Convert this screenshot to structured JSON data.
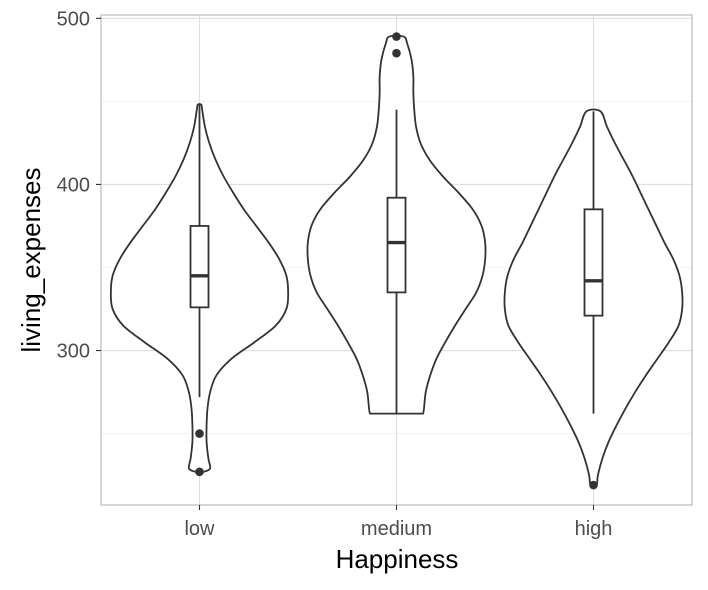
{
  "chart_data": {
    "type": "violin",
    "title": "",
    "xlabel": "Happiness",
    "ylabel": "living_expenses",
    "categories": [
      "low",
      "medium",
      "high"
    ],
    "ylim": [
      207,
      502
    ],
    "yticks": [
      300,
      400,
      500
    ],
    "grid": true,
    "colors": {
      "line": "#333333",
      "grid_major": "#dedede",
      "grid_minor": "#efefef",
      "panel_border": "#b3b3b3",
      "tick_text": "#4d4d4d"
    },
    "violins": [
      {
        "category": "low",
        "profile": [
          [
            227,
            0.05
          ],
          [
            229,
            0.12
          ],
          [
            235,
            0.1
          ],
          [
            245,
            0.08
          ],
          [
            255,
            0.08
          ],
          [
            265,
            0.09
          ],
          [
            275,
            0.12
          ],
          [
            285,
            0.19
          ],
          [
            295,
            0.36
          ],
          [
            305,
            0.62
          ],
          [
            315,
            0.86
          ],
          [
            325,
            0.98
          ],
          [
            335,
            1.0
          ],
          [
            345,
            0.98
          ],
          [
            355,
            0.9
          ],
          [
            365,
            0.78
          ],
          [
            375,
            0.64
          ],
          [
            385,
            0.5
          ],
          [
            395,
            0.38
          ],
          [
            405,
            0.27
          ],
          [
            415,
            0.18
          ],
          [
            425,
            0.11
          ],
          [
            435,
            0.06
          ],
          [
            445,
            0.03
          ],
          [
            448,
            0.02
          ]
        ],
        "box": {
          "q1": 326,
          "median": 345,
          "q3": 375,
          "whisker_low": 272,
          "whisker_high": 448
        },
        "outliers": [
          250,
          227
        ]
      },
      {
        "category": "medium",
        "profile": [
          [
            262,
            0.3
          ],
          [
            265,
            0.31
          ],
          [
            275,
            0.33
          ],
          [
            285,
            0.38
          ],
          [
            295,
            0.45
          ],
          [
            305,
            0.55
          ],
          [
            315,
            0.66
          ],
          [
            325,
            0.78
          ],
          [
            335,
            0.9
          ],
          [
            345,
            0.97
          ],
          [
            355,
            1.0
          ],
          [
            365,
            1.0
          ],
          [
            375,
            0.96
          ],
          [
            385,
            0.86
          ],
          [
            395,
            0.7
          ],
          [
            405,
            0.52
          ],
          [
            415,
            0.37
          ],
          [
            425,
            0.27
          ],
          [
            435,
            0.22
          ],
          [
            445,
            0.2
          ],
          [
            455,
            0.19
          ],
          [
            465,
            0.19
          ],
          [
            475,
            0.17
          ],
          [
            485,
            0.12
          ],
          [
            489,
            0.08
          ]
        ],
        "box": {
          "q1": 335,
          "median": 365,
          "q3": 392,
          "whisker_low": 262,
          "whisker_high": 445
        },
        "outliers": [
          489,
          479
        ]
      },
      {
        "category": "high",
        "profile": [
          [
            219,
            0.02
          ],
          [
            220,
            0.04
          ],
          [
            225,
            0.05
          ],
          [
            235,
            0.1
          ],
          [
            245,
            0.17
          ],
          [
            255,
            0.26
          ],
          [
            265,
            0.36
          ],
          [
            275,
            0.47
          ],
          [
            285,
            0.59
          ],
          [
            295,
            0.72
          ],
          [
            305,
            0.85
          ],
          [
            315,
            0.96
          ],
          [
            325,
            1.0
          ],
          [
            335,
            1.0
          ],
          [
            345,
            0.97
          ],
          [
            355,
            0.9
          ],
          [
            365,
            0.8
          ],
          [
            375,
            0.71
          ],
          [
            385,
            0.62
          ],
          [
            395,
            0.53
          ],
          [
            405,
            0.44
          ],
          [
            415,
            0.34
          ],
          [
            425,
            0.24
          ],
          [
            435,
            0.15
          ],
          [
            444,
            0.08
          ]
        ],
        "box": {
          "q1": 321,
          "median": 342,
          "q3": 385,
          "whisker_low": 262,
          "whisker_high": 444
        },
        "outliers": [
          219
        ]
      }
    ]
  }
}
